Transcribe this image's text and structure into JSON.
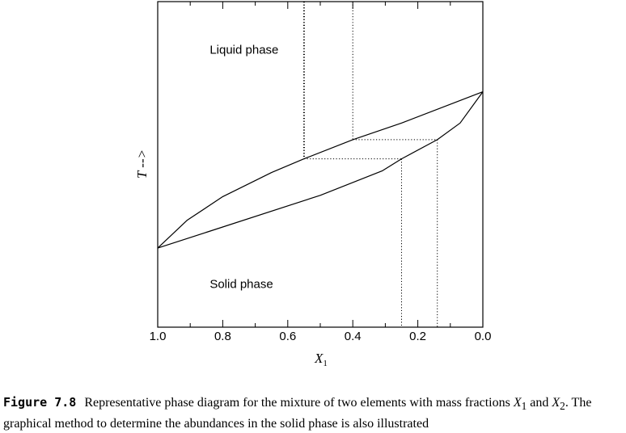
{
  "chart_data": {
    "type": "line",
    "title": "",
    "xlabel": {
      "main": "X",
      "sub": "1"
    },
    "ylabel": "T -->",
    "xlim": [
      1.0,
      0.0
    ],
    "ylim": [
      0,
      1
    ],
    "x_inverted": true,
    "xticks": [
      "1.0",
      "0.8",
      "0.6",
      "0.4",
      "0.2",
      "0.0"
    ],
    "xtick_values": [
      1.0,
      0.8,
      0.6,
      0.4,
      0.2,
      0.0
    ],
    "grid": false,
    "series": [
      {
        "name": "",
        "points": [
          [
            1.0,
            0.243
          ],
          [
            0.91,
            0.328
          ],
          [
            0.8,
            0.401
          ],
          [
            0.65,
            0.475
          ],
          [
            0.55,
            0.517
          ],
          [
            0.4,
            0.576
          ],
          [
            0.25,
            0.627
          ],
          [
            0.0,
            0.723
          ]
        ]
      },
      {
        "name": "",
        "points": [
          [
            1.0,
            0.243
          ],
          [
            0.5,
            0.405
          ],
          [
            0.31,
            0.48
          ],
          [
            0.25,
            0.517
          ],
          [
            0.14,
            0.576
          ],
          [
            0.07,
            0.627
          ],
          [
            0.0,
            0.723
          ]
        ]
      }
    ],
    "annotations": [
      {
        "text": "Liquid phase",
        "x": 0.84,
        "y": 0.84
      },
      {
        "text": "Solid phase",
        "x": 0.84,
        "y": 0.12
      }
    ],
    "tie_lines": [
      {
        "x_liquid": 0.55,
        "x_solid": 0.25,
        "y": 0.517
      },
      {
        "x_liquid": 0.4,
        "x_solid": 0.14,
        "y": 0.576
      }
    ]
  },
  "caption": {
    "figure_label": "Figure 7.8",
    "text_1": "Representative phase diagram for the mixture of two elements with mass fractions ",
    "var_1": "X",
    "var_1_sub": "1",
    "text_2": " and ",
    "var_2": "X",
    "var_2_sub": "2",
    "text_3": ". The graphical method to determine the abundances in the solid phase is also illustrated"
  }
}
